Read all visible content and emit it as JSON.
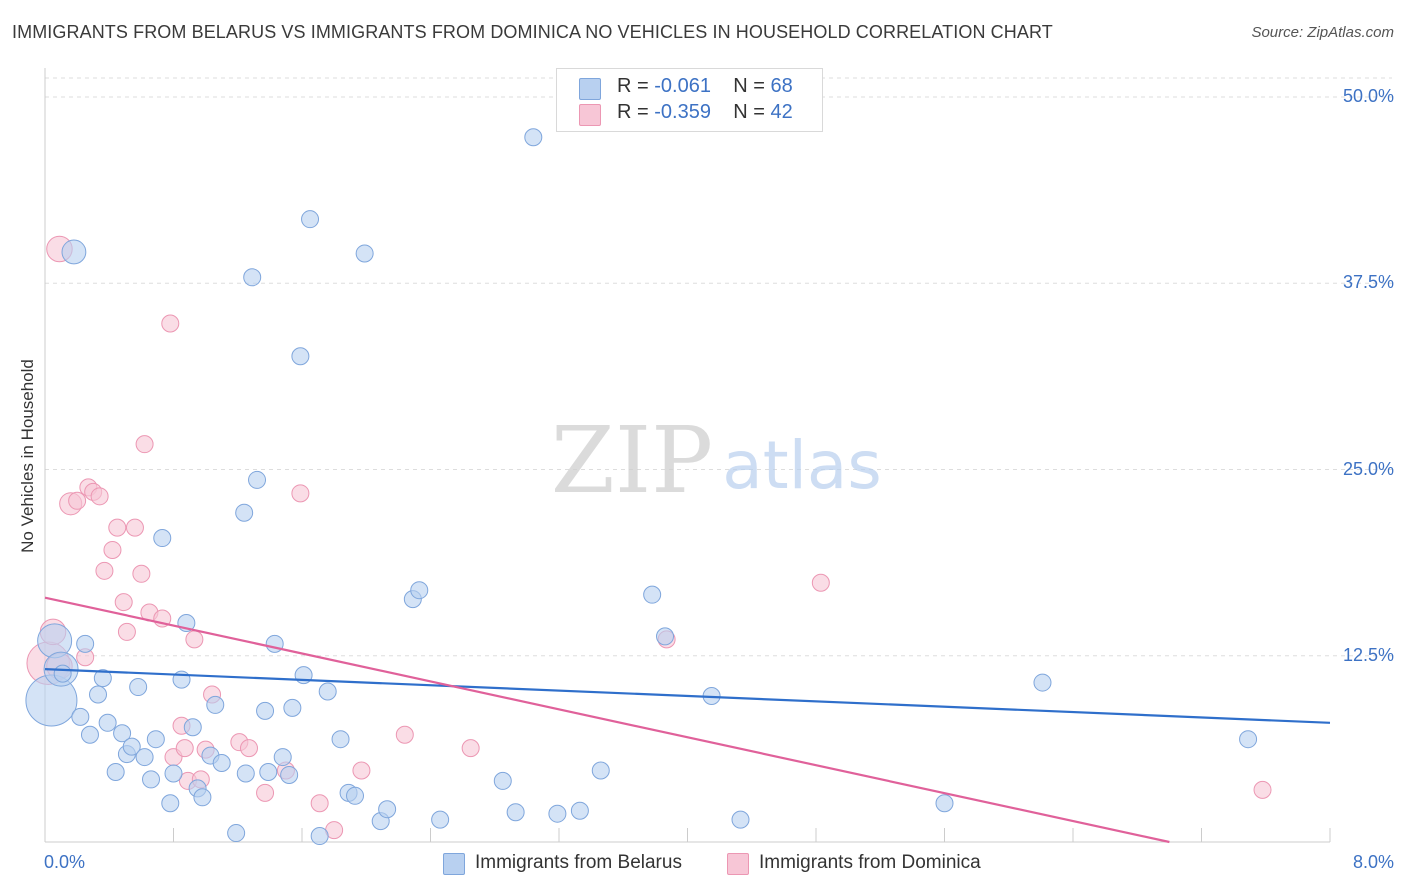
{
  "title": "IMMIGRANTS FROM BELARUS VS IMMIGRANTS FROM DOMINICA NO VEHICLES IN HOUSEHOLD CORRELATION CHART",
  "source": "Source: ZipAtlas.com",
  "watermark": {
    "zip": "ZIP",
    "atlas": "atlas"
  },
  "colors": {
    "blue_fill": "#b8d0f0",
    "blue_stroke": "#7fa6dc",
    "blue_line": "#2f6fcb",
    "pink_fill": "#f7c6d6",
    "pink_stroke": "#ec97b3",
    "pink_line": "#e0619a",
    "axis_text": "#3d72c4",
    "grid": "#dddddd"
  },
  "legend": [
    {
      "r_label": "R =",
      "r_value": "-0.061",
      "n_label": "N =",
      "n_value": "68"
    },
    {
      "r_label": "R =",
      "r_value": "-0.359",
      "n_label": "N =",
      "n_value": "42"
    }
  ],
  "bottom_legend": [
    "Immigrants from Belarus",
    "Immigrants from Dominica"
  ],
  "chart_data": {
    "type": "scatter",
    "title": "IMMIGRANTS FROM BELARUS VS IMMIGRANTS FROM DOMINICA NO VEHICLES IN HOUSEHOLD CORRELATION CHART",
    "xlabel": "",
    "ylabel": "No Vehicles in Household",
    "xlim": [
      0,
      8
    ],
    "ylim": [
      0,
      50
    ],
    "x_tick_labels": [
      "0.0%",
      "8.0%"
    ],
    "y_ticks": [
      12.5,
      25.0,
      37.5,
      50.0
    ],
    "y_tick_labels": [
      "12.5%",
      "25.0%",
      "37.5%",
      "50.0%"
    ],
    "grid": true,
    "series": [
      {
        "name": "Immigrants from Belarus",
        "color": "#b8d0f0",
        "trend": {
          "x": [
            0,
            8
          ],
          "y": [
            11.6,
            8.0
          ]
        },
        "points": [
          {
            "x": 0.04,
            "y": 9.5,
            "s": 3
          },
          {
            "x": 0.06,
            "y": 13.5,
            "s": 2
          },
          {
            "x": 0.1,
            "y": 11.6,
            "s": 2
          },
          {
            "x": 0.11,
            "y": 11.3,
            "s": 1
          },
          {
            "x": 0.18,
            "y": 39.6,
            "s": 1.4
          },
          {
            "x": 0.22,
            "y": 8.4,
            "s": 1
          },
          {
            "x": 0.28,
            "y": 7.2,
            "s": 1
          },
          {
            "x": 0.25,
            "y": 13.3,
            "s": 1
          },
          {
            "x": 0.33,
            "y": 9.9,
            "s": 1
          },
          {
            "x": 0.36,
            "y": 11.0,
            "s": 1
          },
          {
            "x": 0.39,
            "y": 8.0,
            "s": 1
          },
          {
            "x": 0.44,
            "y": 4.7,
            "s": 1
          },
          {
            "x": 0.48,
            "y": 7.3,
            "s": 1
          },
          {
            "x": 0.51,
            "y": 5.9,
            "s": 1
          },
          {
            "x": 0.54,
            "y": 6.4,
            "s": 1
          },
          {
            "x": 0.58,
            "y": 10.4,
            "s": 1
          },
          {
            "x": 0.62,
            "y": 5.7,
            "s": 1
          },
          {
            "x": 0.66,
            "y": 4.2,
            "s": 1
          },
          {
            "x": 0.69,
            "y": 6.9,
            "s": 1
          },
          {
            "x": 0.73,
            "y": 20.4,
            "s": 1
          },
          {
            "x": 0.78,
            "y": 2.6,
            "s": 1
          },
          {
            "x": 0.8,
            "y": 4.6,
            "s": 1
          },
          {
            "x": 0.85,
            "y": 10.9,
            "s": 1
          },
          {
            "x": 0.88,
            "y": 14.7,
            "s": 1
          },
          {
            "x": 0.92,
            "y": 7.7,
            "s": 1
          },
          {
            "x": 0.95,
            "y": 3.6,
            "s": 1
          },
          {
            "x": 0.98,
            "y": 3.0,
            "s": 1
          },
          {
            "x": 1.03,
            "y": 5.8,
            "s": 1
          },
          {
            "x": 1.06,
            "y": 9.2,
            "s": 1
          },
          {
            "x": 1.1,
            "y": 5.3,
            "s": 1
          },
          {
            "x": 1.19,
            "y": 0.6,
            "s": 1
          },
          {
            "x": 1.24,
            "y": 22.1,
            "s": 1
          },
          {
            "x": 1.25,
            "y": 4.6,
            "s": 1
          },
          {
            "x": 1.29,
            "y": 37.9,
            "s": 1
          },
          {
            "x": 1.32,
            "y": 24.3,
            "s": 1
          },
          {
            "x": 1.37,
            "y": 8.8,
            "s": 1
          },
          {
            "x": 1.39,
            "y": 4.7,
            "s": 1
          },
          {
            "x": 1.43,
            "y": 13.3,
            "s": 1
          },
          {
            "x": 1.48,
            "y": 5.7,
            "s": 1
          },
          {
            "x": 1.52,
            "y": 4.5,
            "s": 1
          },
          {
            "x": 1.54,
            "y": 9.0,
            "s": 1
          },
          {
            "x": 1.59,
            "y": 32.6,
            "s": 1
          },
          {
            "x": 1.61,
            "y": 11.2,
            "s": 1
          },
          {
            "x": 1.65,
            "y": 41.8,
            "s": 1
          },
          {
            "x": 1.71,
            "y": 0.4,
            "s": 1
          },
          {
            "x": 1.76,
            "y": 10.1,
            "s": 1
          },
          {
            "x": 1.84,
            "y": 6.9,
            "s": 1
          },
          {
            "x": 1.89,
            "y": 3.3,
            "s": 1
          },
          {
            "x": 1.93,
            "y": 3.1,
            "s": 1
          },
          {
            "x": 1.99,
            "y": 39.5,
            "s": 1
          },
          {
            "x": 2.09,
            "y": 1.4,
            "s": 1
          },
          {
            "x": 2.13,
            "y": 2.2,
            "s": 1
          },
          {
            "x": 2.29,
            "y": 16.3,
            "s": 1
          },
          {
            "x": 2.33,
            "y": 16.9,
            "s": 1
          },
          {
            "x": 2.46,
            "y": 1.5,
            "s": 1
          },
          {
            "x": 2.85,
            "y": 4.1,
            "s": 1
          },
          {
            "x": 2.93,
            "y": 2.0,
            "s": 1
          },
          {
            "x": 3.04,
            "y": 47.3,
            "s": 1
          },
          {
            "x": 3.19,
            "y": 1.9,
            "s": 1
          },
          {
            "x": 3.33,
            "y": 2.1,
            "s": 1
          },
          {
            "x": 3.46,
            "y": 4.8,
            "s": 1
          },
          {
            "x": 3.78,
            "y": 16.6,
            "s": 1
          },
          {
            "x": 3.86,
            "y": 13.8,
            "s": 1
          },
          {
            "x": 4.15,
            "y": 9.8,
            "s": 1
          },
          {
            "x": 4.33,
            "y": 1.5,
            "s": 1
          },
          {
            "x": 5.6,
            "y": 2.6,
            "s": 1
          },
          {
            "x": 6.21,
            "y": 10.7,
            "s": 1
          },
          {
            "x": 7.49,
            "y": 6.9,
            "s": 1
          }
        ]
      },
      {
        "name": "Immigrants from Dominica",
        "color": "#f7c6d6",
        "trend": {
          "x": [
            0,
            7.0
          ],
          "y": [
            16.4,
            0
          ]
        },
        "points": [
          {
            "x": 0.02,
            "y": 12.0,
            "s": 2.5
          },
          {
            "x": 0.05,
            "y": 14.1,
            "s": 1.5
          },
          {
            "x": 0.09,
            "y": 11.8,
            "s": 1.5
          },
          {
            "x": 0.09,
            "y": 39.8,
            "s": 1.5
          },
          {
            "x": 0.16,
            "y": 22.7,
            "s": 1.3
          },
          {
            "x": 0.2,
            "y": 22.9,
            "s": 1
          },
          {
            "x": 0.25,
            "y": 12.4,
            "s": 1
          },
          {
            "x": 0.27,
            "y": 23.8,
            "s": 1
          },
          {
            "x": 0.3,
            "y": 23.5,
            "s": 1
          },
          {
            "x": 0.34,
            "y": 23.2,
            "s": 1
          },
          {
            "x": 0.37,
            "y": 18.2,
            "s": 1
          },
          {
            "x": 0.42,
            "y": 19.6,
            "s": 1
          },
          {
            "x": 0.45,
            "y": 21.1,
            "s": 1
          },
          {
            "x": 0.49,
            "y": 16.1,
            "s": 1
          },
          {
            "x": 0.51,
            "y": 14.1,
            "s": 1
          },
          {
            "x": 0.56,
            "y": 21.1,
            "s": 1
          },
          {
            "x": 0.6,
            "y": 18.0,
            "s": 1
          },
          {
            "x": 0.62,
            "y": 26.7,
            "s": 1
          },
          {
            "x": 0.65,
            "y": 15.4,
            "s": 1
          },
          {
            "x": 0.73,
            "y": 15.0,
            "s": 1
          },
          {
            "x": 0.78,
            "y": 34.8,
            "s": 1
          },
          {
            "x": 0.8,
            "y": 5.7,
            "s": 1
          },
          {
            "x": 0.85,
            "y": 7.8,
            "s": 1
          },
          {
            "x": 0.87,
            "y": 6.3,
            "s": 1
          },
          {
            "x": 0.89,
            "y": 4.1,
            "s": 1
          },
          {
            "x": 0.93,
            "y": 13.6,
            "s": 1
          },
          {
            "x": 0.97,
            "y": 4.2,
            "s": 1
          },
          {
            "x": 1.0,
            "y": 6.2,
            "s": 1
          },
          {
            "x": 1.04,
            "y": 9.9,
            "s": 1
          },
          {
            "x": 1.21,
            "y": 6.7,
            "s": 1
          },
          {
            "x": 1.27,
            "y": 6.3,
            "s": 1
          },
          {
            "x": 1.37,
            "y": 3.3,
            "s": 1
          },
          {
            "x": 1.5,
            "y": 4.8,
            "s": 1
          },
          {
            "x": 1.59,
            "y": 23.4,
            "s": 1
          },
          {
            "x": 1.71,
            "y": 2.6,
            "s": 1
          },
          {
            "x": 1.8,
            "y": 0.8,
            "s": 1
          },
          {
            "x": 1.97,
            "y": 4.8,
            "s": 1
          },
          {
            "x": 2.24,
            "y": 7.2,
            "s": 1
          },
          {
            "x": 2.65,
            "y": 6.3,
            "s": 1
          },
          {
            "x": 3.87,
            "y": 13.6,
            "s": 1
          },
          {
            "x": 4.83,
            "y": 17.4,
            "s": 1
          },
          {
            "x": 7.58,
            "y": 3.5,
            "s": 1
          }
        ]
      }
    ]
  }
}
